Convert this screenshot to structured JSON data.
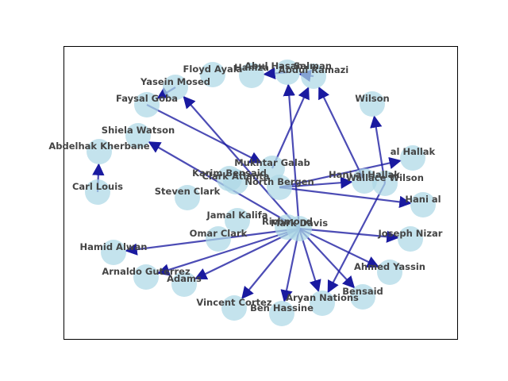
{
  "colors": {
    "node_fill": "#add8e6",
    "edge": "#1a1aa0",
    "label": "#444444",
    "frame": "#000000",
    "background": "#ffffff"
  },
  "nodes": [
    {
      "id": "floyd-ayala",
      "label": "Floyd Ayala"
    },
    {
      "id": "hamza",
      "label": "Hamza"
    },
    {
      "id": "abul-hasan",
      "label": "Abul Hasan"
    },
    {
      "id": "salman",
      "label": "Salman"
    },
    {
      "id": "abdul-ramazi",
      "label": "Abdul Ramazi"
    },
    {
      "id": "yasein-mosed",
      "label": "Yasein Mosed"
    },
    {
      "id": "faysal-goba",
      "label": "Faysal Goba"
    },
    {
      "id": "wilson",
      "label": "Wilson"
    },
    {
      "id": "shiela-watson",
      "label": "Shiela Watson"
    },
    {
      "id": "abdelhak-kherbane",
      "label": "Abdelhak Kherbane"
    },
    {
      "id": "al-hallak",
      "label": "al Hallak"
    },
    {
      "id": "mukhtar-galab",
      "label": "Mukhtar Galab"
    },
    {
      "id": "karim-bensaid",
      "label": "Karim Bensaid"
    },
    {
      "id": "clark-atlanta",
      "label": "Clark Atlanta"
    },
    {
      "id": "north-bergen",
      "label": "North Bergen"
    },
    {
      "id": "hani-al-hallak",
      "label": "Hani al Hallak"
    },
    {
      "id": "wallace-wilson",
      "label": "Wallace Wilson"
    },
    {
      "id": "carl-louis",
      "label": "Carl Louis"
    },
    {
      "id": "steven-clark",
      "label": "Steven Clark"
    },
    {
      "id": "hani-al",
      "label": "Hani al"
    },
    {
      "id": "jamal-kalifa",
      "label": "Jamal Kalifa"
    },
    {
      "id": "richmond",
      "label": "Richmond"
    },
    {
      "id": "mark-davis",
      "label": "Mark Davis"
    },
    {
      "id": "omar-clark",
      "label": "Omar Clark"
    },
    {
      "id": "joseph-nizar",
      "label": "Joseph Nizar"
    },
    {
      "id": "hamid-alwan",
      "label": "Hamid Alwan"
    },
    {
      "id": "ahmed-yassin",
      "label": "Ahmed Yassin"
    },
    {
      "id": "arnaldo-guterrez",
      "label": "Arnaldo Guterrez"
    },
    {
      "id": "adams",
      "label": "Adams"
    },
    {
      "id": "bensaid",
      "label": "Bensaid"
    },
    {
      "id": "aryan-nations",
      "label": "Aryan Nations"
    },
    {
      "id": "vincent-cortez",
      "label": "Vincent Cortez"
    },
    {
      "id": "ben-hassine",
      "label": "Ben Hassine"
    }
  ],
  "edges": [
    {
      "from": "mark-davis",
      "to": "hamid-alwan"
    },
    {
      "from": "mark-davis",
      "to": "arnaldo-guterrez"
    },
    {
      "from": "mark-davis",
      "to": "adams"
    },
    {
      "from": "mark-davis",
      "to": "vincent-cortez"
    },
    {
      "from": "mark-davis",
      "to": "ben-hassine"
    },
    {
      "from": "mark-davis",
      "to": "aryan-nations"
    },
    {
      "from": "mark-davis",
      "to": "bensaid"
    },
    {
      "from": "mark-davis",
      "to": "ahmed-yassin"
    },
    {
      "from": "mark-davis",
      "to": "joseph-nizar"
    },
    {
      "from": "mark-davis",
      "to": "abul-hasan"
    },
    {
      "from": "mark-davis",
      "to": "yasein-mosed"
    },
    {
      "from": "mark-davis",
      "to": "shiela-watson"
    },
    {
      "from": "mukhtar-galab",
      "to": "abdul-ramazi"
    },
    {
      "from": "faysal-goba",
      "to": "mukhtar-galab"
    },
    {
      "from": "north-bergen",
      "to": "hani-al"
    },
    {
      "from": "north-bergen",
      "to": "hani-al-hallak"
    },
    {
      "from": "north-bergen",
      "to": "al-hallak"
    },
    {
      "from": "hani-al-hallak",
      "to": "abdul-ramazi"
    },
    {
      "from": "wallace-wilson",
      "to": "wilson"
    },
    {
      "from": "wallace-wilson",
      "to": "aryan-nations"
    },
    {
      "from": "abdul-ramazi",
      "to": "salman"
    },
    {
      "from": "salman",
      "to": "hamza"
    },
    {
      "from": "yasein-mosed",
      "to": "faysal-goba"
    },
    {
      "from": "carl-louis",
      "to": "abdelhak-kherbane"
    }
  ]
}
